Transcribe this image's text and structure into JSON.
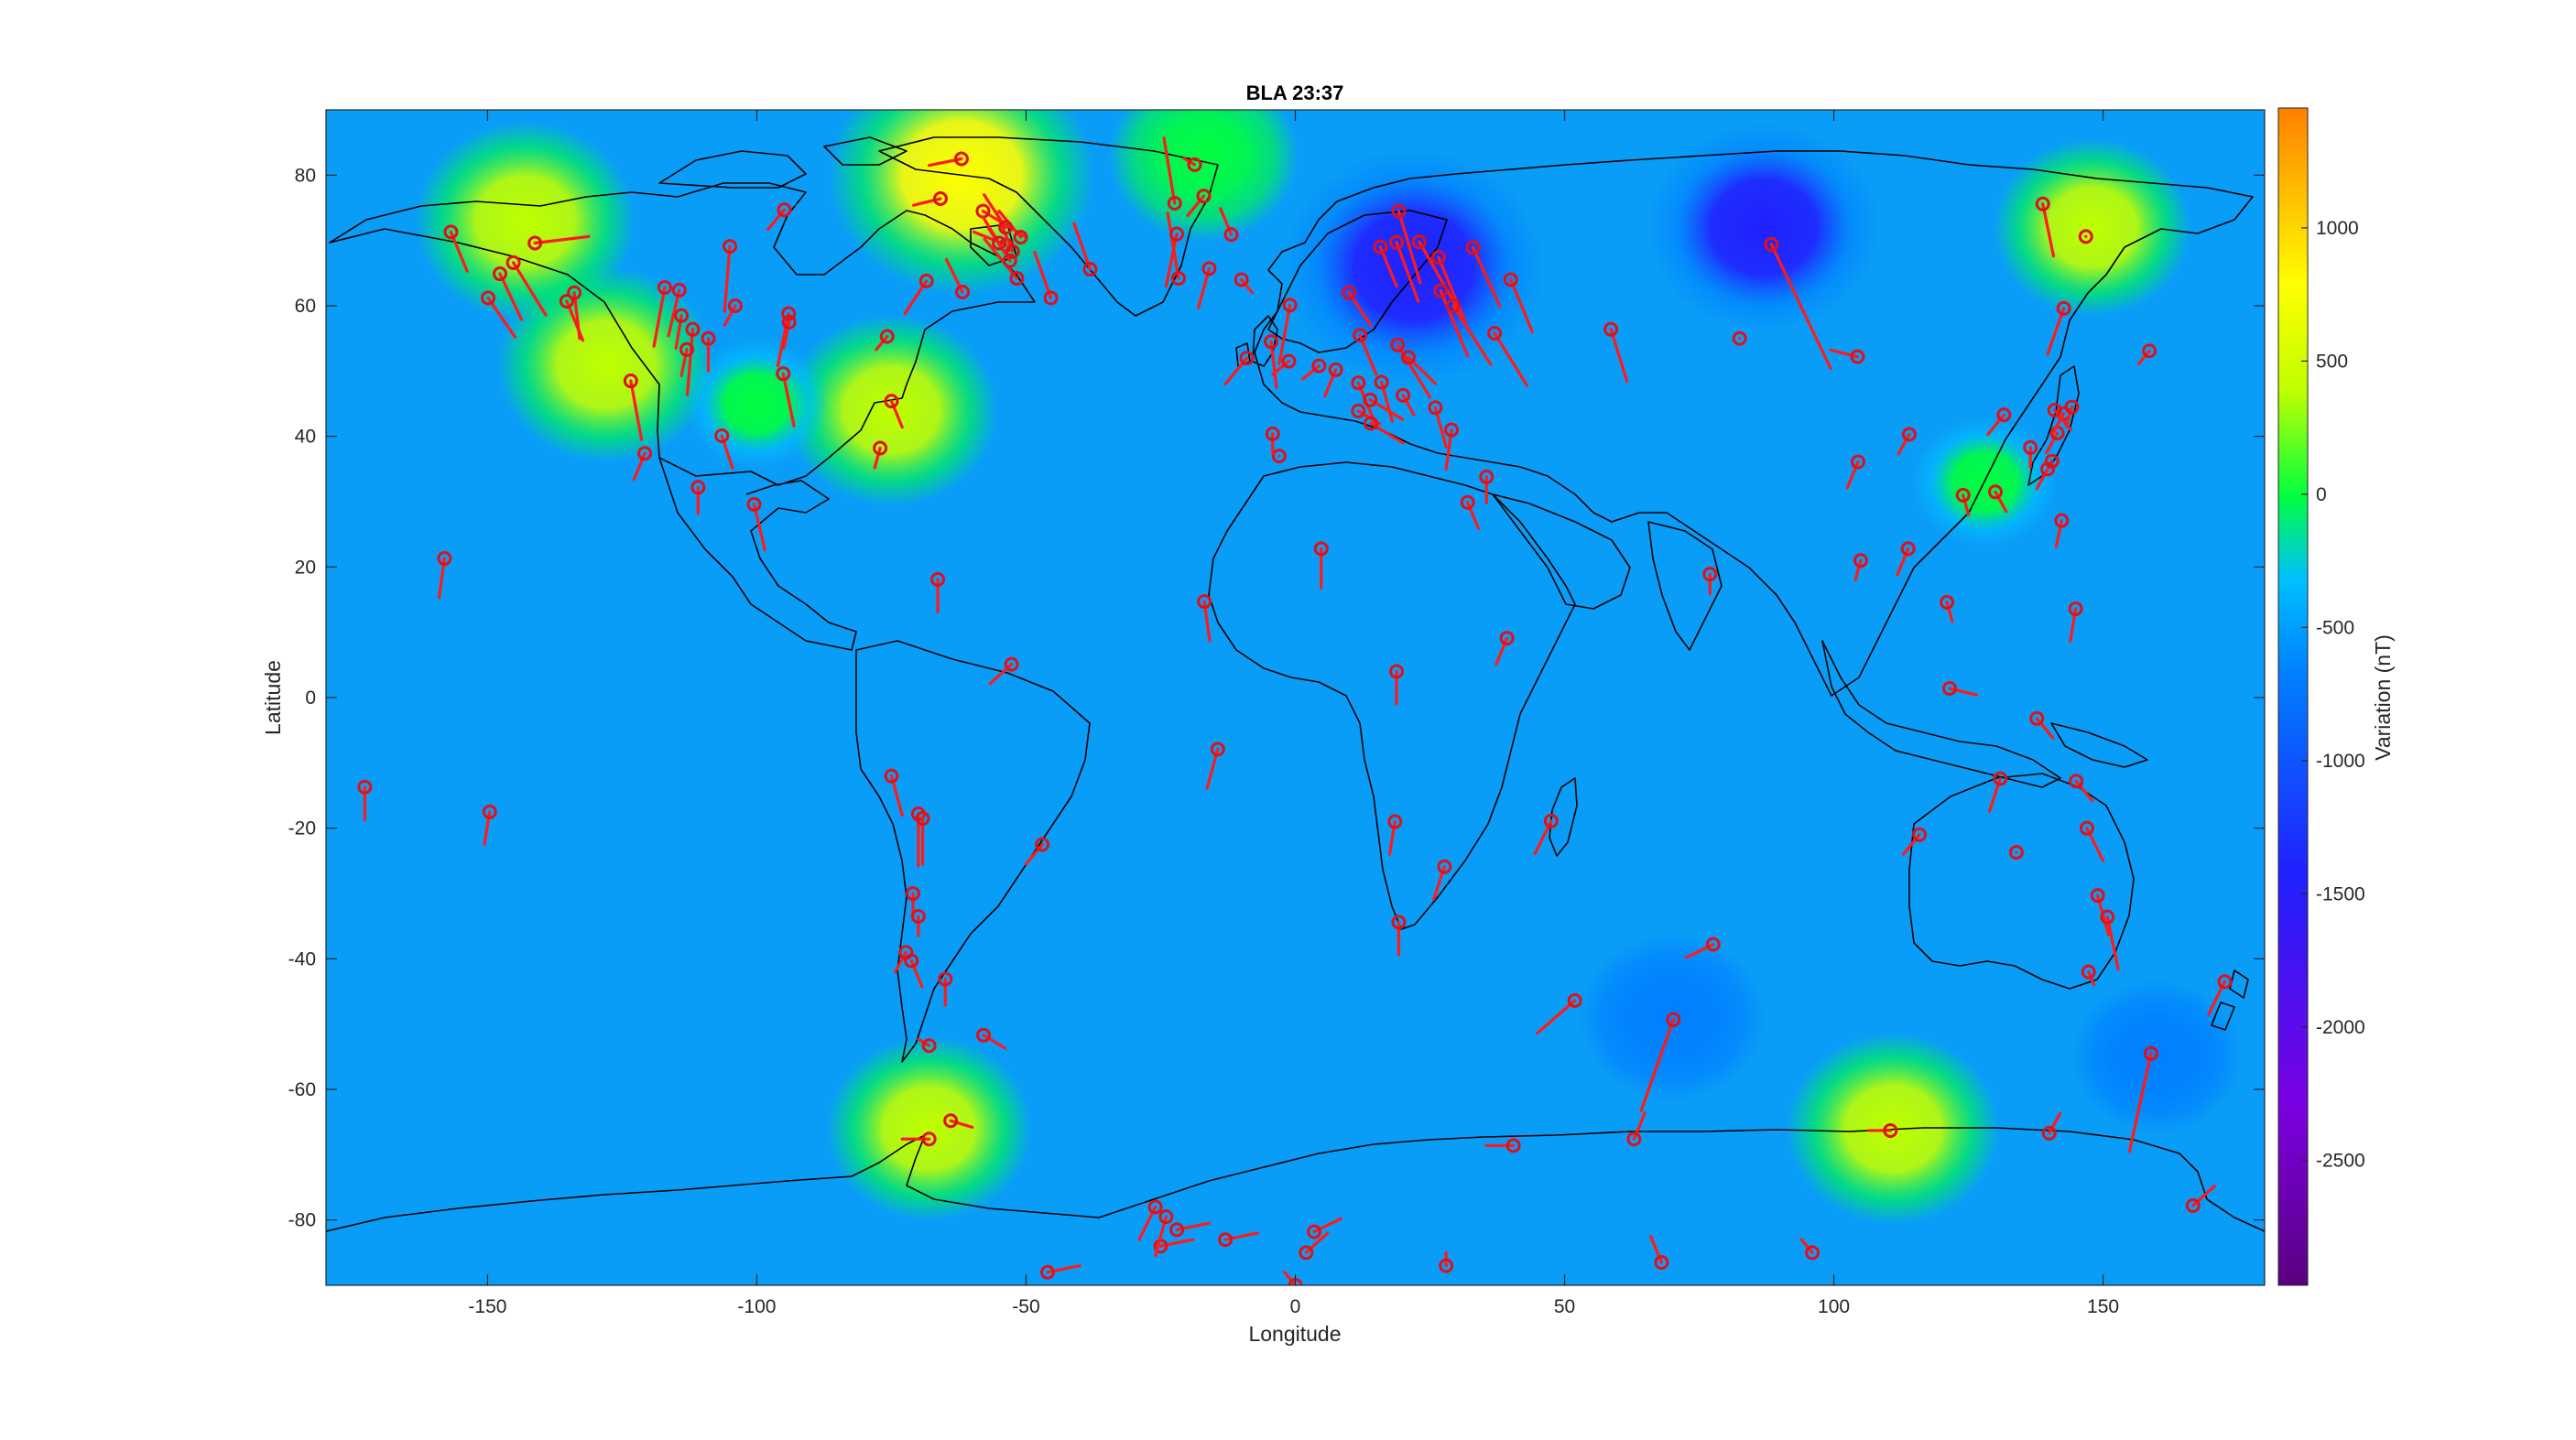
{
  "title": "BLA 23:37",
  "chart_data": {
    "type": "heatmap",
    "title": "BLA 23:37",
    "xlabel": "Longitude",
    "ylabel": "Latitude",
    "xlim": [
      -180,
      180
    ],
    "ylim": [
      -90,
      90
    ],
    "xticks": [
      -150,
      -100,
      -50,
      0,
      50,
      100,
      150
    ],
    "yticks": [
      -80,
      -60,
      -40,
      -20,
      0,
      20,
      40,
      60,
      80
    ],
    "colorbar": {
      "label": "Variation (nT)",
      "ticks": [
        1000,
        500,
        0,
        -500,
        -1000,
        -1500,
        -2000,
        -2500
      ],
      "range": [
        -2970,
        1450
      ],
      "colormap": [
        "#5a0080",
        "#7a00e0",
        "#2020ff",
        "#0080ff",
        "#00c0ff",
        "#00ff40",
        "#c0ff00",
        "#ffff00",
        "#ff8000"
      ]
    },
    "background_value": -430,
    "anomalies": [
      {
        "lon": -143,
        "lat": 73,
        "value": 350
      },
      {
        "lon": -128,
        "lat": 51,
        "value": 330
      },
      {
        "lon": -75,
        "lat": 44,
        "value": 300
      },
      {
        "lon": -62,
        "lat": 80,
        "value": 650
      },
      {
        "lon": -17,
        "lat": 83,
        "value": 150
      },
      {
        "lon": 22,
        "lat": 66,
        "value": -1500
      },
      {
        "lon": 87,
        "lat": 72,
        "value": -1300
      },
      {
        "lon": 148,
        "lat": 72,
        "value": 200
      },
      {
        "lon": 128,
        "lat": 33,
        "value": -150
      },
      {
        "lon": -68,
        "lat": -66,
        "value": 250
      },
      {
        "lon": 111,
        "lat": -66,
        "value": 300
      },
      {
        "lon": 70,
        "lat": -49,
        "value": -1000
      },
      {
        "lon": 160,
        "lat": -55,
        "value": -900
      },
      {
        "lon": -100,
        "lat": 45,
        "value": -150
      }
    ],
    "stations": [
      [
        -156.8,
        71.3,
        3,
        -6
      ],
      [
        -147.7,
        64.9,
        4,
        -7
      ],
      [
        -149.9,
        61.2,
        5,
        -6
      ],
      [
        -145.2,
        66.6,
        6,
        -8
      ],
      [
        -141.2,
        69.6,
        10,
        1
      ],
      [
        -135.3,
        60.7,
        3,
        -6
      ],
      [
        -123.4,
        48.5,
        2,
        -9
      ],
      [
        -133.9,
        62.0,
        1,
        -7
      ],
      [
        -117.1,
        62.8,
        -2,
        -9
      ],
      [
        -114.4,
        62.4,
        -2,
        -7
      ],
      [
        -111.9,
        56.4,
        -1,
        -10
      ],
      [
        -105.0,
        69.1,
        -1,
        -10
      ],
      [
        -94.9,
        74.7,
        -3,
        -3
      ],
      [
        -94.1,
        58.8,
        -2,
        -8
      ],
      [
        -95.1,
        49.6,
        2,
        -8
      ],
      [
        -68.5,
        63.8,
        -4,
        -5
      ],
      [
        -62.0,
        82.5,
        -6,
        -1
      ],
      [
        -65.9,
        76.4,
        -5,
        -1
      ],
      [
        -58.0,
        74.5,
        8,
        -4
      ],
      [
        -53.7,
        69.3,
        -6,
        2
      ],
      [
        -51.7,
        64.2,
        -6,
        6
      ],
      [
        -45.4,
        61.2,
        -3,
        7
      ],
      [
        -38.1,
        65.6,
        -3,
        7
      ],
      [
        -22.4,
        75.7,
        -2,
        10
      ],
      [
        -18.7,
        81.6,
        -2,
        1
      ],
      [
        -21.7,
        64.2,
        -2,
        10
      ],
      [
        -11.9,
        70.9,
        -2,
        4
      ],
      [
        -75.0,
        45.4,
        2,
        -4
      ],
      [
        -77.1,
        38.2,
        -1,
        -3
      ],
      [
        -120.8,
        37.4,
        -2,
        -4
      ],
      [
        -110.9,
        32.2,
        0,
        -4
      ],
      [
        -106.5,
        40.1,
        2,
        -5
      ],
      [
        -100.5,
        29.6,
        2,
        -7
      ],
      [
        -158.0,
        21.3,
        -1,
        -6
      ],
      [
        -66.4,
        18.1,
        0,
        -5
      ],
      [
        -52.7,
        5.1,
        -4,
        -3
      ],
      [
        -16.9,
        14.7,
        1,
        -6
      ],
      [
        -14.4,
        -7.9,
        -2,
        -6
      ],
      [
        -75.0,
        -12.0,
        2,
        -6
      ],
      [
        -70.0,
        -17.8,
        0,
        -8
      ],
      [
        -69.2,
        -18.5,
        0,
        -7
      ],
      [
        -47.0,
        -22.5,
        -3,
        -3
      ],
      [
        -71.0,
        -30.0,
        0,
        -4
      ],
      [
        -70.0,
        -33.5,
        0,
        -3
      ],
      [
        -72.3,
        -39.0,
        -2,
        -3
      ],
      [
        -71.3,
        -40.3,
        2,
        -4
      ],
      [
        -65.0,
        -43.1,
        0,
        -4
      ],
      [
        -68.0,
        -53.3,
        -2,
        1
      ],
      [
        -57.9,
        -51.7,
        4,
        -2
      ],
      [
        -68.0,
        -67.6,
        -5,
        0
      ],
      [
        -64.0,
        -64.8,
        4,
        -1
      ],
      [
        -172.8,
        -13.7,
        0,
        -5
      ],
      [
        -149.6,
        -17.5,
        -1,
        -5
      ],
      [
        -46.0,
        -88.0,
        6,
        1
      ],
      [
        -26.0,
        -78.0,
        -3,
        -5
      ],
      [
        -25.0,
        -84.0,
        6,
        1
      ],
      [
        -24.0,
        -79.5,
        -2,
        -6
      ],
      [
        -22.0,
        -81.5,
        6,
        1
      ],
      [
        -13.0,
        -83.0,
        6,
        1
      ],
      [
        2.0,
        -85.0,
        4,
        3
      ],
      [
        3.5,
        -81.8,
        5,
        2
      ],
      [
        0.0,
        -90.0,
        -2,
        2
      ],
      [
        28.0,
        -87.0,
        0,
        2
      ],
      [
        68.0,
        -86.5,
        -2,
        4
      ],
      [
        96.0,
        -85.0,
        -2,
        2
      ],
      [
        40.5,
        -68.6,
        -5,
        0
      ],
      [
        62.9,
        -67.6,
        2,
        4
      ],
      [
        110.5,
        -66.3,
        -4,
        0
      ],
      [
        140.0,
        -66.7,
        2,
        3
      ],
      [
        166.7,
        -77.8,
        4,
        3
      ],
      [
        -3.0,
        37.0,
        0,
        0
      ],
      [
        -4.2,
        40.4,
        0,
        -3
      ],
      [
        4.4,
        50.8,
        -3,
        -2
      ],
      [
        7.5,
        50.2,
        -2,
        -4
      ],
      [
        -4.5,
        54.5,
        1,
        -7
      ],
      [
        -9.0,
        52.0,
        -4,
        -4
      ],
      [
        -1.2,
        51.5,
        -3,
        -2
      ],
      [
        10.0,
        62.0,
        4,
        -5
      ],
      [
        -1.0,
        60.1,
        -2,
        -9
      ],
      [
        12.0,
        55.5,
        3,
        -6
      ],
      [
        15.8,
        69.0,
        3,
        -6
      ],
      [
        18.8,
        69.7,
        4,
        -9
      ],
      [
        19.2,
        74.5,
        4,
        -11
      ],
      [
        23.0,
        69.8,
        7,
        -10
      ],
      [
        26.6,
        67.4,
        5,
        -10
      ],
      [
        27.0,
        62.3,
        5,
        -10
      ],
      [
        29.3,
        60.0,
        7,
        -9
      ],
      [
        19.0,
        54.0,
        6,
        -8
      ],
      [
        21.0,
        52.1,
        5,
        -4
      ],
      [
        11.7,
        48.2,
        3,
        -6
      ],
      [
        16.0,
        48.3,
        2,
        -6
      ],
      [
        13.9,
        45.6,
        6,
        -3
      ],
      [
        20.0,
        46.3,
        2,
        -3
      ],
      [
        11.7,
        43.9,
        4,
        -2
      ],
      [
        14.0,
        42.0,
        6,
        -3
      ],
      [
        26.0,
        44.4,
        2,
        -6
      ],
      [
        29.0,
        41.0,
        -1,
        -6
      ],
      [
        37.0,
        55.8,
        6,
        -8
      ],
      [
        33.0,
        68.9,
        5,
        -9
      ],
      [
        40.0,
        64.0,
        4,
        -8
      ],
      [
        58.6,
        56.4,
        3,
        -8
      ],
      [
        32.0,
        29.9,
        2,
        -4
      ],
      [
        35.5,
        33.8,
        0,
        -4
      ],
      [
        4.8,
        22.8,
        0,
        -6
      ],
      [
        18.8,
        4.0,
        0,
        -5
      ],
      [
        39.3,
        9.1,
        -2,
        -4
      ],
      [
        18.5,
        -19.0,
        -1,
        -5
      ],
      [
        27.7,
        -25.9,
        -2,
        -5
      ],
      [
        19.2,
        -34.4,
        0,
        -5
      ],
      [
        47.5,
        -18.9,
        -3,
        -5
      ],
      [
        51.9,
        -46.4,
        -7,
        -5
      ],
      [
        70.2,
        -49.3,
        -6,
        -14
      ],
      [
        77.6,
        -37.8,
        -5,
        -2
      ],
      [
        82.5,
        55.0,
        0,
        0
      ],
      [
        88.4,
        69.4,
        11,
        -19
      ],
      [
        104.4,
        52.2,
        -5,
        1
      ],
      [
        77.0,
        18.9,
        0,
        -3
      ],
      [
        104.5,
        36.1,
        -2,
        -4
      ],
      [
        114.0,
        40.3,
        -2,
        -3
      ],
      [
        105.0,
        21.0,
        -1,
        -3
      ],
      [
        113.8,
        22.8,
        -2,
        -4
      ],
      [
        121.0,
        14.6,
        1,
        -3
      ],
      [
        124.0,
        31.0,
        1,
        -3
      ],
      [
        131.6,
        43.3,
        -3,
        -3
      ],
      [
        130.0,
        31.5,
        2,
        -3
      ],
      [
        136.5,
        38.3,
        0,
        -3
      ],
      [
        140.5,
        36.2,
        -2,
        -3
      ],
      [
        141.5,
        40.5,
        -2,
        -3
      ],
      [
        142.7,
        43.5,
        -2,
        -3
      ],
      [
        141.0,
        44.0,
        3,
        -3
      ],
      [
        144.2,
        44.5,
        -1,
        -3
      ],
      [
        139.7,
        35.0,
        -2,
        -3
      ],
      [
        142.3,
        27.1,
        -1,
        -4
      ],
      [
        144.9,
        13.6,
        -1,
        -5
      ],
      [
        142.7,
        59.6,
        -3,
        -7
      ],
      [
        158.6,
        53.1,
        -2,
        -2
      ],
      [
        146.8,
        70.6,
        0,
        0
      ],
      [
        138.8,
        75.6,
        2,
        -8
      ],
      [
        121.5,
        1.4,
        5,
        -1
      ],
      [
        137.7,
        -3.2,
        3,
        -3
      ],
      [
        130.9,
        -12.4,
        -2,
        -5
      ],
      [
        115.9,
        -21.0,
        -3,
        -3
      ],
      [
        133.9,
        -23.7,
        0,
        0
      ],
      [
        145.0,
        -12.8,
        3,
        -3
      ],
      [
        147.0,
        -20.0,
        3,
        -5
      ],
      [
        149.0,
        -30.3,
        2,
        -6
      ],
      [
        150.8,
        -33.6,
        2,
        -8
      ],
      [
        147.3,
        -42.0,
        1,
        -2
      ],
      [
        158.9,
        -54.5,
        -4,
        -15
      ],
      [
        172.6,
        -43.5,
        -3,
        -5
      ],
      [
        -10.0,
        64.0,
        2,
        -2
      ],
      [
        -16.0,
        65.7,
        -2,
        -6
      ],
      [
        -22.0,
        71.0,
        -2,
        -8
      ],
      [
        -17.0,
        76.8,
        -3,
        -3
      ],
      [
        -51.0,
        70.5,
        -4,
        4
      ],
      [
        -52.5,
        68.3,
        -3,
        6
      ],
      [
        -53.0,
        66.9,
        -4,
        5
      ],
      [
        -55.0,
        69.6,
        -3,
        4
      ],
      [
        -53.8,
        72.0,
        -4,
        5
      ],
      [
        -61.8,
        62.1,
        -3,
        5
      ],
      [
        -75.8,
        55.3,
        -2,
        -2
      ],
      [
        -94.0,
        57.5,
        -1,
        -4
      ],
      [
        -104.0,
        60.0,
        -2,
        -3
      ],
      [
        -113.0,
        53.3,
        -1,
        -4
      ],
      [
        -109.0,
        55.0,
        0,
        -5
      ],
      [
        -114.0,
        58.5,
        -1,
        -5
      ]
    ]
  }
}
